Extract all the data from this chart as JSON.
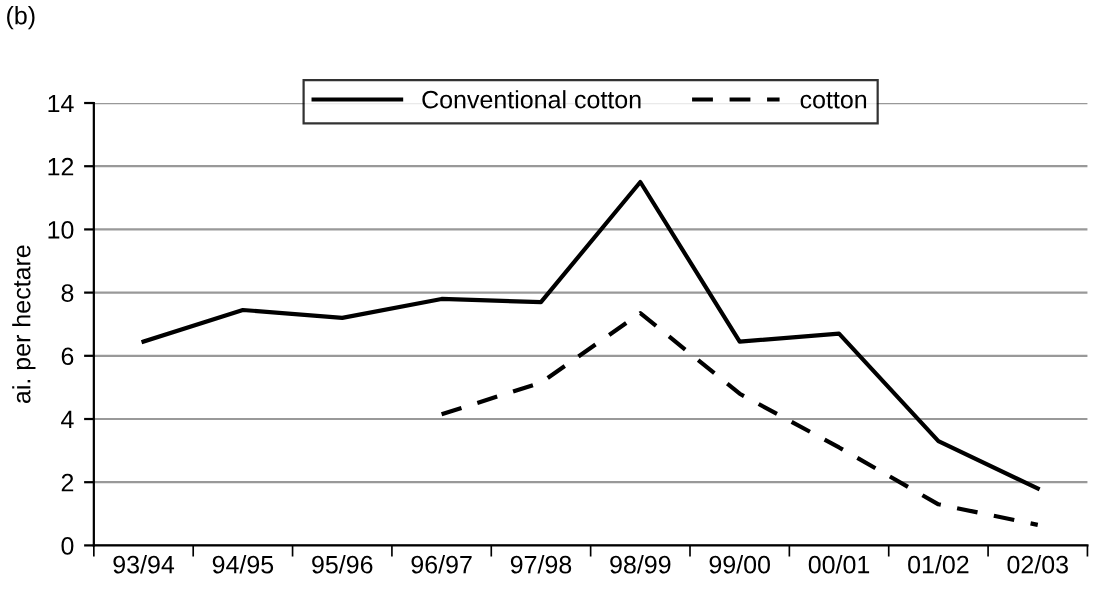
{
  "chart_data": {
    "type": "line",
    "ylabel": "ai. per hectare",
    "annotations": [
      "(b)"
    ],
    "categories": [
      "93/94",
      "94/95",
      "95/96",
      "96/97",
      "97/98",
      "98/99",
      "99/00",
      "00/01",
      "01/02",
      "02/03"
    ],
    "series": [
      {
        "name": "Conventional cotton",
        "color": "#000000",
        "line_style": "solid",
        "values": [
          6.45,
          7.45,
          7.2,
          7.8,
          7.7,
          11.5,
          6.45,
          6.7,
          3.3,
          1.8
        ]
      },
      {
        "name": "cotton",
        "color": "#000000",
        "line_style": "dashed",
        "values": [
          null,
          null,
          null,
          4.15,
          5.15,
          7.35,
          4.8,
          3.1,
          1.3,
          0.65
        ]
      }
    ],
    "ylim": [
      0,
      14
    ],
    "yticks": [
      0,
      2,
      4,
      6,
      8,
      10,
      12,
      14
    ],
    "grid": "y",
    "legend": "top",
    "marker": "none"
  }
}
